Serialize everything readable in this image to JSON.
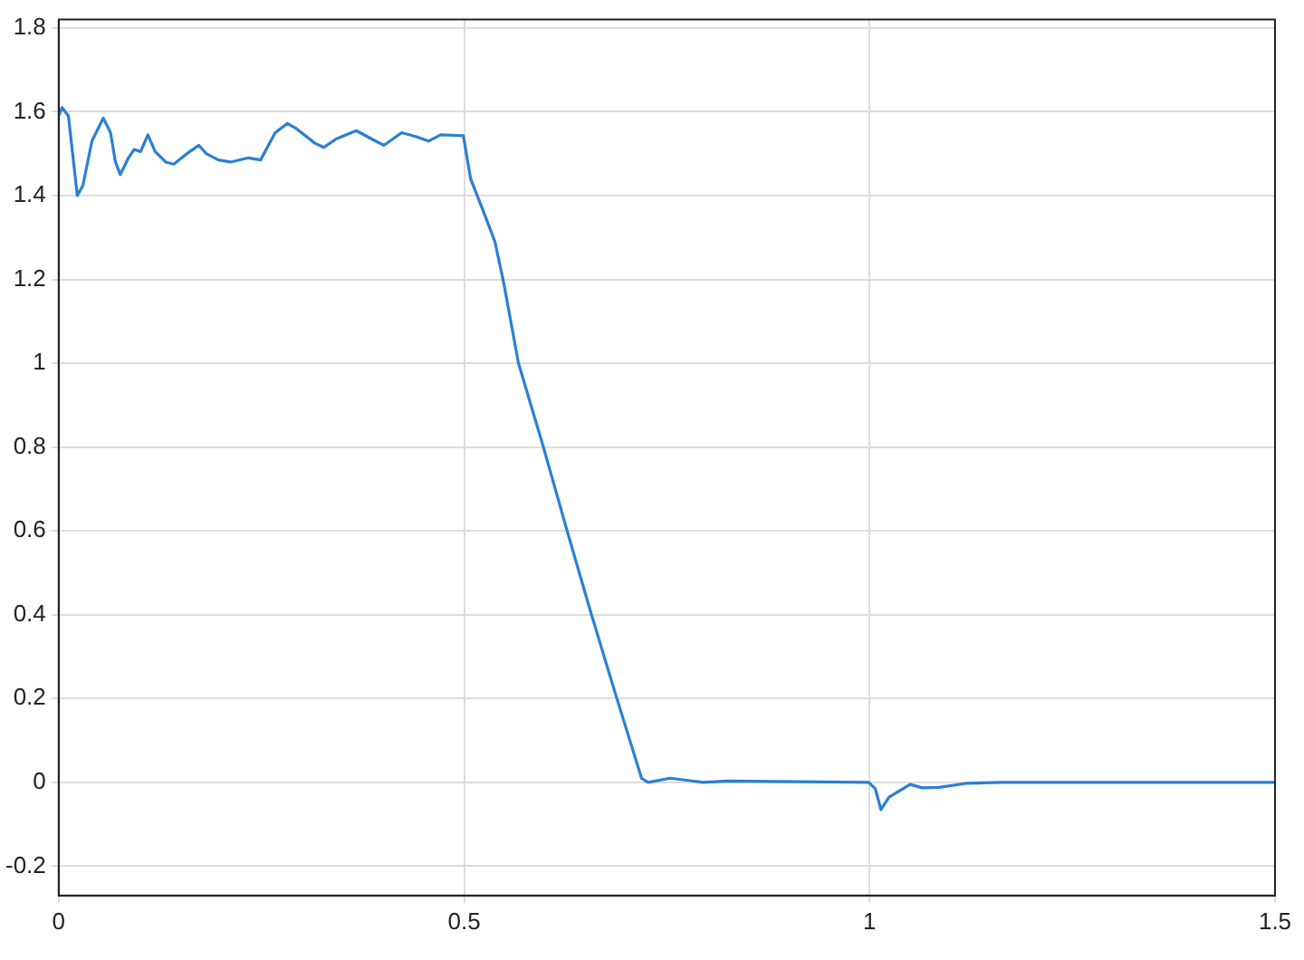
{
  "chart_data": {
    "type": "line",
    "xlim": [
      0,
      1.5
    ],
    "xticks": [
      0,
      0.5,
      1,
      1.5
    ],
    "ylim": [
      -0.27,
      1.82
    ],
    "yticks": [
      -0.2,
      0,
      0.2,
      0.4,
      0.6,
      0.8,
      1,
      1.2,
      1.4,
      1.6,
      1.8
    ],
    "grid": true,
    "legend": false,
    "marker": "none",
    "line_style": "solid",
    "series": [
      {
        "color": "#2a7fd4",
        "x": [
          0,
          0.004,
          0.012,
          0.023,
          0.03,
          0.041,
          0.055,
          0.064,
          0.07,
          0.076,
          0.086,
          0.093,
          0.101,
          0.11,
          0.119,
          0.132,
          0.142,
          0.158,
          0.173,
          0.182,
          0.197,
          0.212,
          0.234,
          0.249,
          0.267,
          0.282,
          0.293,
          0.316,
          0.327,
          0.342,
          0.367,
          0.386,
          0.401,
          0.423,
          0.442,
          0.456,
          0.471,
          0.499,
          0.508,
          0.523,
          0.538,
          0.549,
          0.567,
          0.597,
          0.627,
          0.656,
          0.686,
          0.719,
          0.727,
          0.754,
          0.795,
          0.825,
          0.999,
          1.007,
          1.014,
          1.024,
          1.05,
          1.065,
          1.086,
          1.121,
          1.162,
          1.5
        ],
        "values": [
          1.59,
          1.61,
          1.59,
          1.4,
          1.425,
          1.53,
          1.585,
          1.55,
          1.48,
          1.45,
          1.49,
          1.51,
          1.505,
          1.545,
          1.505,
          1.48,
          1.475,
          1.5,
          1.52,
          1.5,
          1.485,
          1.48,
          1.49,
          1.485,
          1.55,
          1.572,
          1.56,
          1.525,
          1.515,
          1.535,
          1.555,
          1.535,
          1.52,
          1.55,
          1.54,
          1.53,
          1.545,
          1.543,
          1.44,
          1.366,
          1.29,
          1.19,
          1.0,
          0.805,
          0.6,
          0.407,
          0.215,
          0.009,
          0,
          0.01,
          0,
          0.003,
          0,
          -0.015,
          -0.065,
          -0.035,
          -0.005,
          -0.013,
          -0.012,
          -0.002,
          0,
          0
        ]
      }
    ]
  }
}
